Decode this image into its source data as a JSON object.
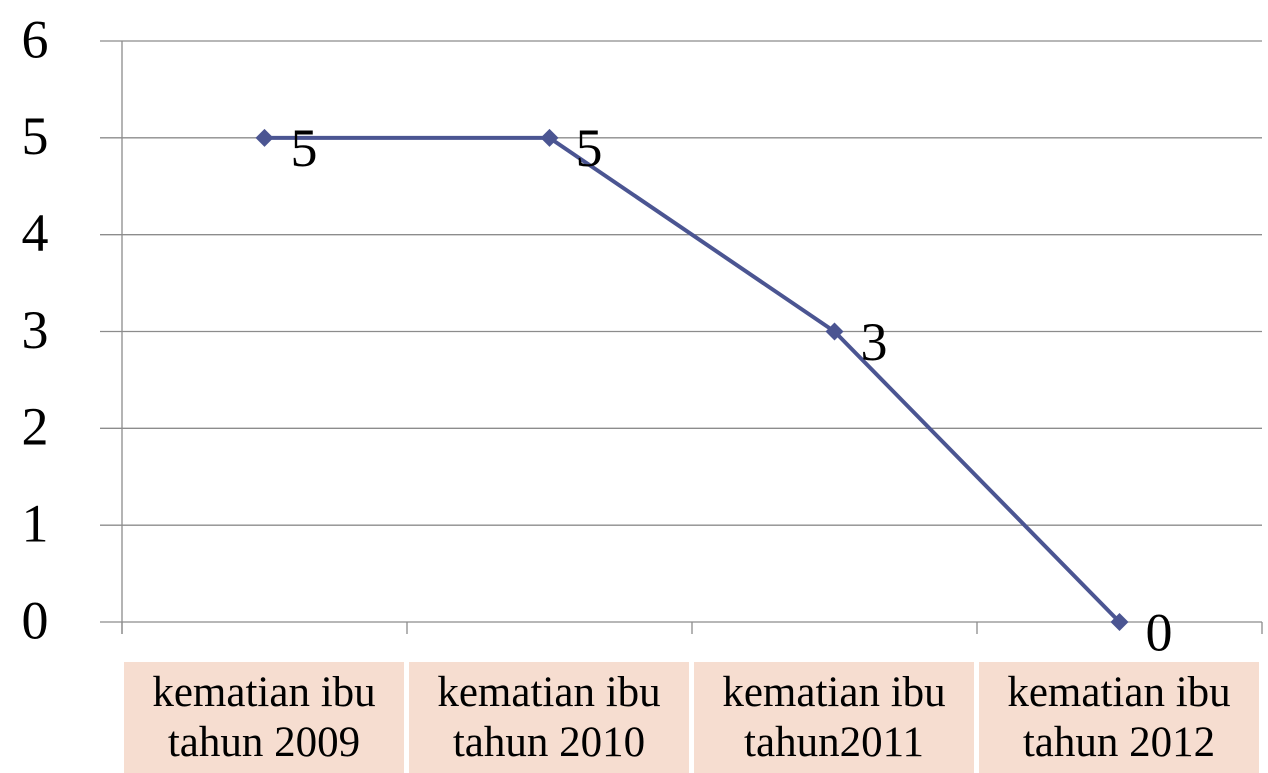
{
  "chart_data": {
    "type": "line",
    "categories": [
      "kematian ibu tahun 2009",
      "kematian ibu tahun 2010",
      "kematian ibu tahun2011",
      "kematian ibu tahun 2012"
    ],
    "series": [
      {
        "name": null,
        "color": "#4b5592",
        "values": [
          5,
          5,
          3,
          0
        ]
      }
    ],
    "ylim": [
      0,
      6
    ],
    "yticks": [
      0,
      1,
      2,
      3,
      4,
      5,
      6
    ],
    "grid": true,
    "data_labels": true
  }
}
